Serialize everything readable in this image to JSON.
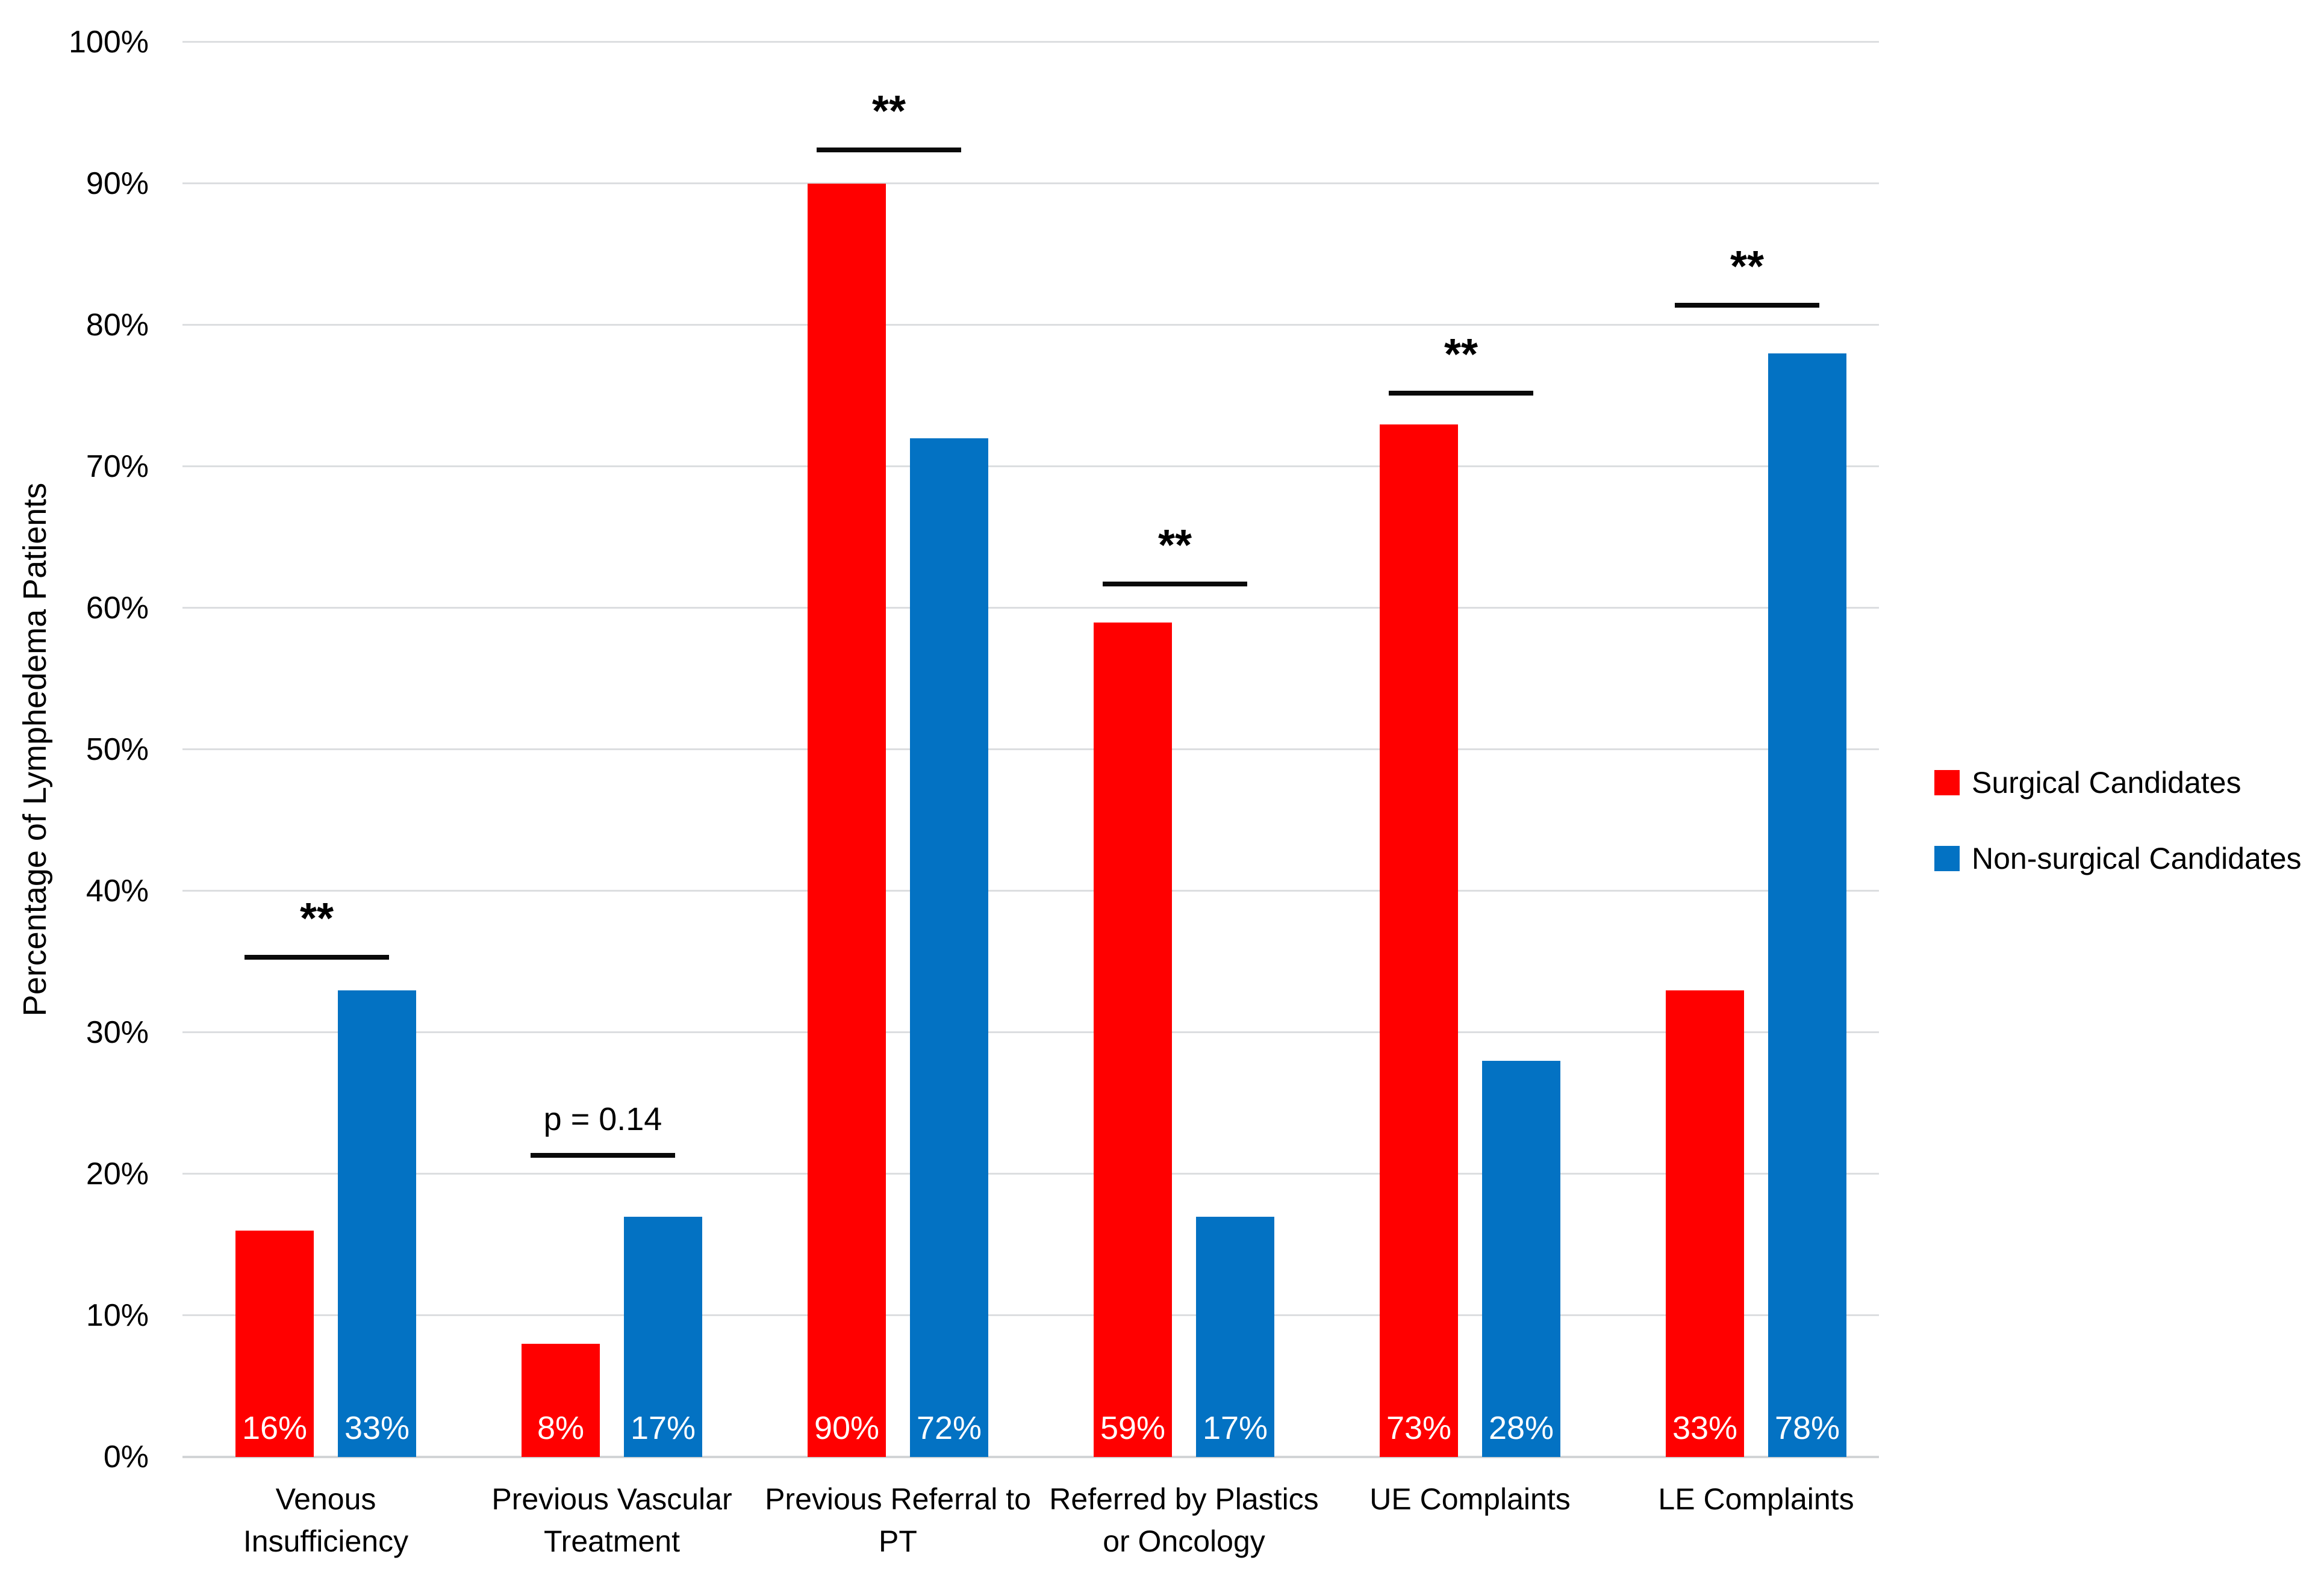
{
  "chart_data": {
    "type": "bar",
    "title": "",
    "xlabel": "",
    "ylabel": "Percentage of Lymphedema Patients",
    "ylim": [
      0,
      100
    ],
    "ytick_labels": [
      "0%",
      "10%",
      "20%",
      "30%",
      "40%",
      "50%",
      "60%",
      "70%",
      "80%",
      "90%",
      "100%"
    ],
    "grid": true,
    "legend_position": "right",
    "categories": [
      {
        "lines": [
          "Venous",
          "Insufficiency"
        ]
      },
      {
        "lines": [
          "Previous Vascular",
          "Treatment"
        ]
      },
      {
        "lines": [
          "Previous Referral to",
          "PT"
        ]
      },
      {
        "lines": [
          "Referred by Plastics",
          "or Oncology"
        ]
      },
      {
        "lines": [
          "UE Complaints"
        ]
      },
      {
        "lines": [
          "LE Complaints"
        ]
      }
    ],
    "series": [
      {
        "name": "Surgical Candidates",
        "color": "#ff0000",
        "values": [
          16,
          8,
          90,
          59,
          73,
          33
        ],
        "labels": [
          "16%",
          "8%",
          "90%",
          "59%",
          "73%",
          "33%"
        ]
      },
      {
        "name": "Non-surgical Candidates",
        "color": "#0372c3",
        "values": [
          33,
          17,
          72,
          17,
          28,
          78
        ],
        "labels": [
          "33%",
          "17%",
          "72%",
          "17%",
          "28%",
          "78%"
        ]
      }
    ],
    "annotations": [
      {
        "category_index": 0,
        "text": "**",
        "kind": "stars",
        "line_y_pct": 35.3
      },
      {
        "category_index": 1,
        "text": "p = 0.14",
        "kind": "ptext",
        "line_y_pct": 21.3
      },
      {
        "category_index": 2,
        "text": "**",
        "kind": "stars",
        "line_y_pct": 92.4
      },
      {
        "category_index": 3,
        "text": "**",
        "kind": "stars",
        "line_y_pct": 61.7
      },
      {
        "category_index": 4,
        "text": "**",
        "kind": "stars",
        "line_y_pct": 75.2
      },
      {
        "category_index": 5,
        "text": "**",
        "kind": "stars",
        "line_y_pct": 81.4
      }
    ]
  }
}
